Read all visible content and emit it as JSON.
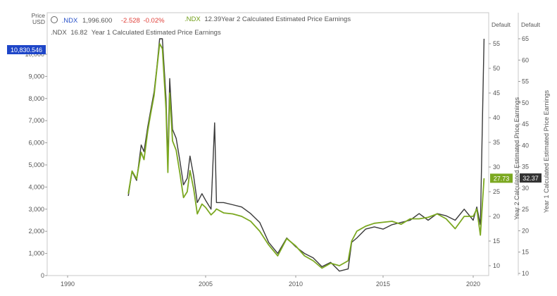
{
  "header": {
    "price_label": "Price",
    "currency": "USD",
    "ndx_ticker": ".NDX",
    "ndx_value": "1,996.600",
    "ndx_change": "-2.528",
    "ndx_change_pct": "-0.02%",
    "y2_ticker": ".NDX",
    "y2_value": "12.39",
    "y2_name": "Year 2 Calculated Estimated Price Earnings",
    "y1_ticker": ".NDX",
    "y1_value": "16.82",
    "y1_name": "Year 1 Calculated Estimated Price Earnings",
    "right_axis1_header": "Default",
    "right_axis2_header": "Default",
    "right_axis1_title": "Year 2 Calculated Estimated Price Earnings",
    "right_axis2_title": "Year 1 Calculated Estimated Price Earnings",
    "badge_price": "10,830.546",
    "badge_y2": "27.73",
    "badge_y1": "32.37"
  },
  "colors": {
    "ndx_line": "#3a3a3a",
    "pe_line": "#7ba820",
    "badge_blue": "#1e46c8",
    "badge_green": "#7ba820",
    "badge_dark": "#333333"
  },
  "chart_data": {
    "type": "line",
    "x_ticks": [
      "1990",
      "2005",
      "2010",
      "2015",
      "2020"
    ],
    "left_axis": {
      "ticks": [
        "0",
        "1,000",
        "2,000",
        "3,000",
        "4,000",
        "5,000",
        "6,000",
        "7,000",
        "8,000",
        "9,000",
        "10,000"
      ],
      "ylim": [
        0,
        10700
      ]
    },
    "right_axis1": {
      "ticks": [
        "10",
        "15",
        "20",
        "25",
        "30",
        "35",
        "40",
        "45",
        "50",
        "55"
      ],
      "ylim": [
        8,
        56
      ]
    },
    "right_axis2": {
      "ticks": [
        "10",
        "15",
        "20",
        "25",
        "30",
        "35",
        "40",
        "45",
        "50",
        "55",
        "60",
        "65"
      ],
      "ylim": [
        9.5,
        65
      ]
    },
    "grid": false,
    "series": [
      {
        "name": ".NDX",
        "axis": "left",
        "points": [
          [
            1996.6,
            3600
          ],
          [
            1997.0,
            4700
          ],
          [
            1997.5,
            4300
          ],
          [
            1998.0,
            5900
          ],
          [
            1998.3,
            5600
          ],
          [
            1998.7,
            6700
          ],
          [
            1999.0,
            7400
          ],
          [
            1999.4,
            8300
          ],
          [
            1999.7,
            9400
          ],
          [
            2000.0,
            10700
          ],
          [
            2000.3,
            10900
          ],
          [
            2000.7,
            8000
          ],
          [
            2000.9,
            5200
          ],
          [
            2001.1,
            8900
          ],
          [
            2001.4,
            6600
          ],
          [
            2001.8,
            6200
          ],
          [
            2002.2,
            5200
          ],
          [
            2002.6,
            4100
          ],
          [
            2003.0,
            4400
          ],
          [
            2003.3,
            5400
          ],
          [
            2003.7,
            4500
          ],
          [
            2004.1,
            3300
          ],
          [
            2004.6,
            3700
          ],
          [
            2005.0,
            3400
          ],
          [
            2005.3,
            3000
          ],
          [
            2005.5,
            6900
          ],
          [
            2005.6,
            3300
          ],
          [
            2006.0,
            3300
          ],
          [
            2006.5,
            3200
          ],
          [
            2007.0,
            3100
          ],
          [
            2007.5,
            2800
          ],
          [
            2008.0,
            2400
          ],
          [
            2008.5,
            1500
          ],
          [
            2009.0,
            1000
          ],
          [
            2009.5,
            1700
          ],
          [
            2010.0,
            1300
          ],
          [
            2010.5,
            1000
          ],
          [
            2011.0,
            800
          ],
          [
            2011.5,
            400
          ],
          [
            2012.0,
            600
          ],
          [
            2012.5,
            200
          ],
          [
            2013.0,
            300
          ],
          [
            2013.2,
            1500
          ],
          [
            2013.5,
            1700
          ],
          [
            2014.0,
            2100
          ],
          [
            2014.5,
            2200
          ],
          [
            2015.0,
            2100
          ],
          [
            2015.5,
            2300
          ],
          [
            2016.0,
            2400
          ],
          [
            2016.5,
            2500
          ],
          [
            2017.0,
            2800
          ],
          [
            2017.5,
            2500
          ],
          [
            2018.0,
            2800
          ],
          [
            2018.5,
            2700
          ],
          [
            2019.0,
            2500
          ],
          [
            2019.5,
            3000
          ],
          [
            2020.0,
            2500
          ],
          [
            2020.2,
            3100
          ],
          [
            2020.4,
            2300
          ],
          [
            2020.6,
            10831
          ]
        ]
      },
      {
        "name": "Year 2 Calculated Estimated Price Earnings",
        "axis": "right1",
        "points": [
          [
            1996.6,
            24.6
          ],
          [
            1997.0,
            29.2
          ],
          [
            1997.5,
            27.6
          ],
          [
            1998.0,
            33.0
          ],
          [
            1998.3,
            31.5
          ],
          [
            1998.7,
            37.2
          ],
          [
            1999.0,
            40.5
          ],
          [
            1999.4,
            44.5
          ],
          [
            1999.7,
            49.8
          ],
          [
            2000.0,
            55.0
          ],
          [
            2000.3,
            54.0
          ],
          [
            2000.7,
            41.6
          ],
          [
            2000.9,
            28.9
          ],
          [
            2001.1,
            45.0
          ],
          [
            2001.4,
            35.3
          ],
          [
            2001.8,
            33.4
          ],
          [
            2002.2,
            28.8
          ],
          [
            2002.6,
            23.8
          ],
          [
            2003.0,
            25.0
          ],
          [
            2003.3,
            29.3
          ],
          [
            2003.7,
            25.6
          ],
          [
            2004.1,
            20.5
          ],
          [
            2004.6,
            22.5
          ],
          [
            2005.0,
            21.8
          ],
          [
            2005.3,
            20.3
          ],
          [
            2005.5,
            21.0
          ],
          [
            2005.6,
            21.5
          ],
          [
            2006.0,
            20.7
          ],
          [
            2006.5,
            20.5
          ],
          [
            2007.0,
            20.0
          ],
          [
            2007.5,
            19.0
          ],
          [
            2008.0,
            17.0
          ],
          [
            2008.5,
            14.2
          ],
          [
            2009.0,
            12.0
          ],
          [
            2009.5,
            15.5
          ],
          [
            2010.0,
            14.0
          ],
          [
            2010.5,
            12.0
          ],
          [
            2011.0,
            11.0
          ],
          [
            2011.5,
            9.5
          ],
          [
            2012.0,
            10.5
          ],
          [
            2012.5,
            10.0
          ],
          [
            2013.0,
            11.0
          ],
          [
            2013.2,
            15.0
          ],
          [
            2013.5,
            17.0
          ],
          [
            2014.0,
            18.0
          ],
          [
            2014.5,
            18.6
          ],
          [
            2015.0,
            18.8
          ],
          [
            2015.5,
            19.0
          ],
          [
            2016.0,
            18.4
          ],
          [
            2016.5,
            19.5
          ],
          [
            2017.0,
            19.5
          ],
          [
            2017.5,
            19.8
          ],
          [
            2018.0,
            20.5
          ],
          [
            2018.5,
            19.5
          ],
          [
            2019.0,
            17.5
          ],
          [
            2019.5,
            20.0
          ],
          [
            2020.0,
            20.0
          ],
          [
            2020.2,
            21.5
          ],
          [
            2020.4,
            16.2
          ],
          [
            2020.6,
            27.73
          ]
        ]
      }
    ]
  }
}
